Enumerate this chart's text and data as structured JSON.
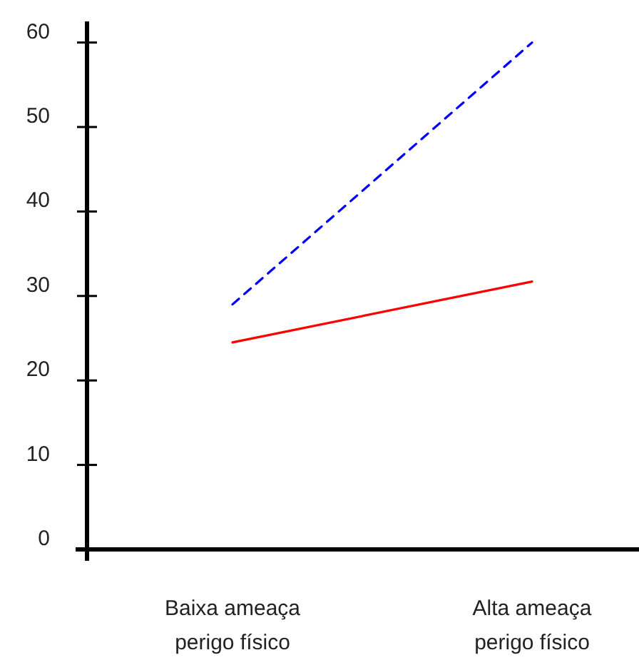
{
  "chart_data": {
    "type": "line",
    "categories": [
      "Baixa ameaça\nperigo físico",
      "Alta ameaça\nperigo físico"
    ],
    "series": [
      {
        "color": "#0000ff",
        "values": [
          29,
          60
        ],
        "line_style": "dashed"
      },
      {
        "color": "#ff0000",
        "values": [
          24.5,
          31.7
        ],
        "line_style": "solid"
      }
    ],
    "ylim": [
      0,
      62.5
    ],
    "yticks": [
      0,
      10,
      20,
      30,
      40,
      50,
      60
    ],
    "grid": false,
    "marker": "none"
  }
}
